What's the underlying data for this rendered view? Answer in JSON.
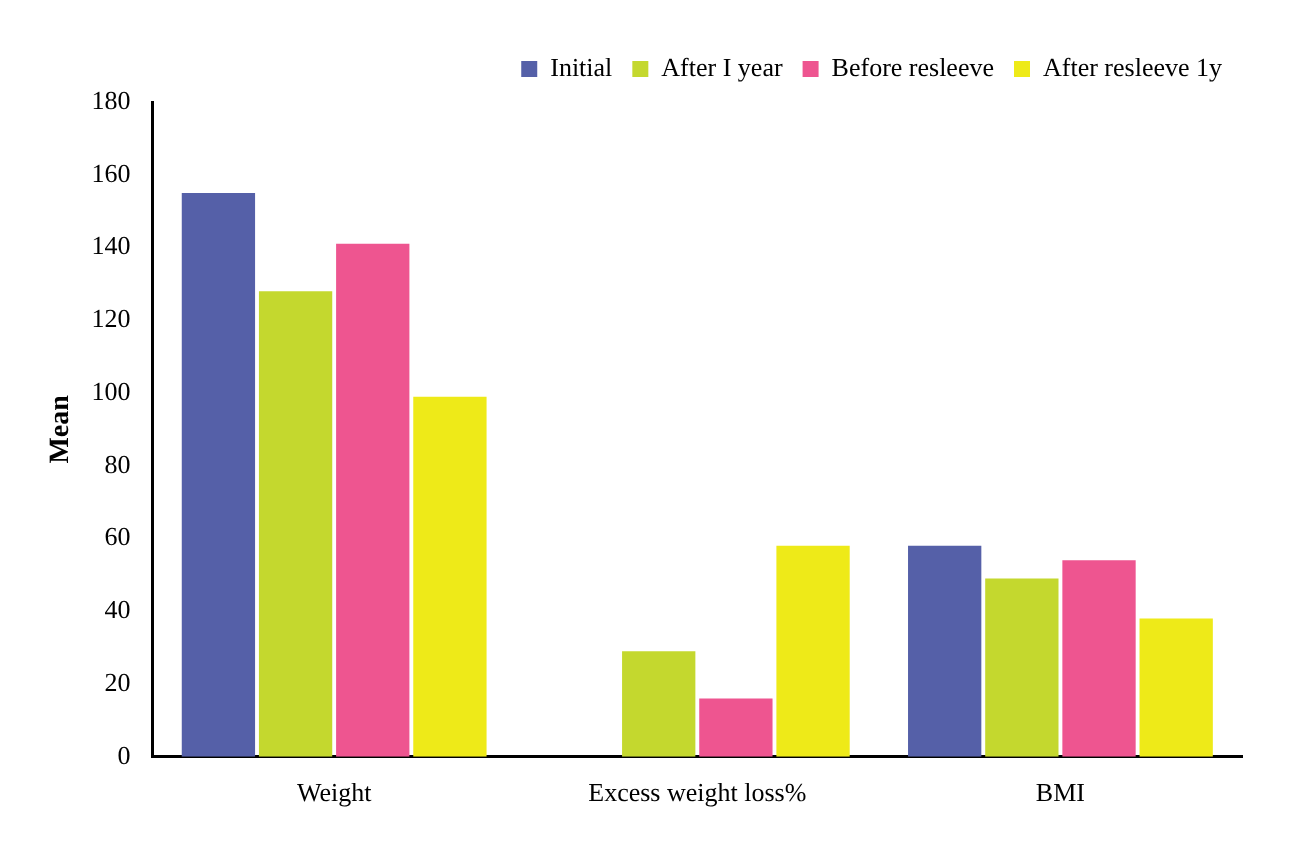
{
  "chart_data": {
    "type": "bar",
    "ylabel": "Mean",
    "categories": [
      "Weight",
      "Excess weight loss%",
      "BMI"
    ],
    "series": [
      {
        "name": "Initial",
        "color": "#5560a8",
        "values": [
          155,
          null,
          58
        ]
      },
      {
        "name": "After I year",
        "color": "#c4d82e",
        "values": [
          128,
          29,
          49
        ]
      },
      {
        "name": "Before resleeve",
        "color": "#ee5590",
        "values": [
          141,
          16,
          54
        ]
      },
      {
        "name": "After resleeve 1y",
        "color": "#eeea18",
        "values": [
          99,
          58,
          38
        ]
      }
    ],
    "ylim": [
      0,
      180
    ],
    "yticks": [
      0,
      20,
      40,
      60,
      80,
      100,
      120,
      140,
      160,
      180
    ],
    "grid": false,
    "legend": "top right"
  }
}
